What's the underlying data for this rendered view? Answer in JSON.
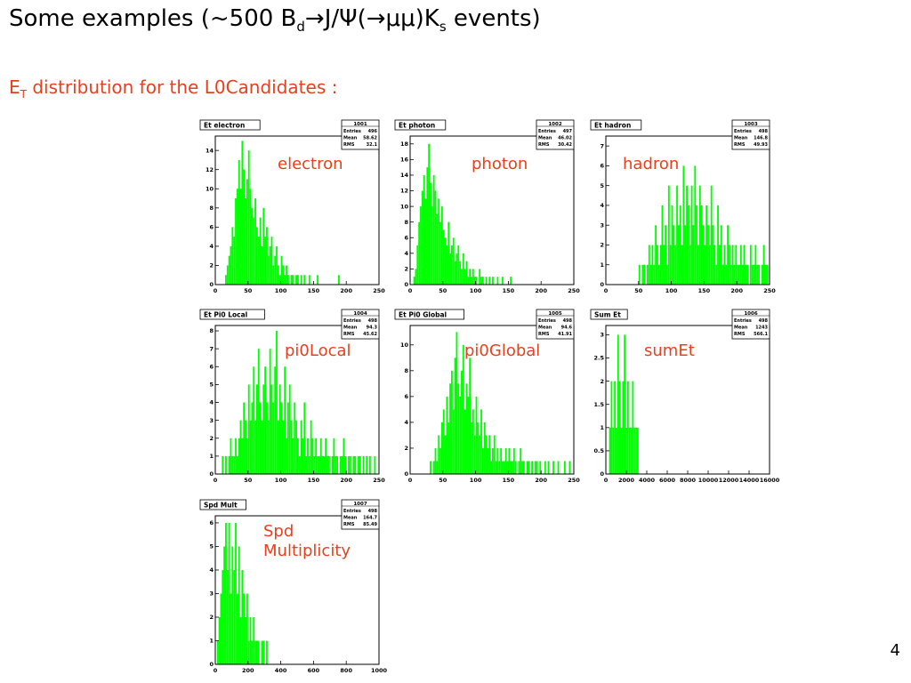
{
  "slide": {
    "title_prefix": "Some examples (~500 B",
    "title_sub_d": "d",
    "title_mid": "J/Ψ(",
    "title_mumu": "μμ",
    "title_end": ")K",
    "title_sub_s": "s",
    "title_tail": " events)",
    "arrow": "→",
    "subtitle_e": "E",
    "subtitle_sub": "T",
    "subtitle_rest": " distribution for the L0Candidates :",
    "page_number": "4"
  },
  "colors": {
    "histogram": "#00ff00",
    "label": "#e8401c",
    "frame": "#000000"
  },
  "stats_labels": {
    "entries": "Entries",
    "mean": "Mean",
    "rms": "RMS"
  },
  "chart_data": [
    {
      "type": "bar",
      "title": "Et electron",
      "label_line1": "electron",
      "label_line2": "",
      "id": "1001",
      "entries": "496",
      "mean": "58.62",
      "rms": "32.1",
      "xlim": [
        0,
        250
      ],
      "ylim": [
        0,
        15.5
      ],
      "xticks": [
        0,
        50,
        100,
        150,
        200,
        250
      ],
      "xtick_labels": [
        "0",
        "50",
        "100",
        "150",
        "200",
        "250"
      ],
      "yticks": [
        0,
        2,
        4,
        6,
        8,
        10,
        12,
        14
      ],
      "ytick_labels": [
        "0",
        "2",
        "4",
        "6",
        "8",
        "10",
        "12",
        "14"
      ],
      "bin_start": 0,
      "bin_width": 2.5,
      "values": [
        0,
        0,
        0,
        0,
        0,
        0,
        1,
        2,
        3,
        4,
        6,
        5,
        9,
        10,
        13,
        10,
        15,
        12,
        9,
        11,
        14,
        10,
        8,
        7,
        9,
        6,
        5,
        7,
        4,
        8,
        5,
        6,
        3,
        4,
        5,
        2,
        3,
        4,
        2,
        1,
        3,
        2,
        1,
        2,
        1,
        0,
        1,
        1,
        0,
        1,
        1,
        0,
        1,
        0,
        1,
        0,
        0,
        1,
        0,
        0,
        0,
        0,
        1,
        0,
        0,
        0,
        0,
        0,
        0,
        0,
        0,
        0,
        0,
        0,
        0,
        1,
        0,
        0,
        0,
        0,
        0,
        0,
        0,
        0,
        0,
        0,
        0,
        0,
        0,
        0,
        0,
        0,
        0,
        0,
        0,
        0,
        0,
        0,
        0,
        0
      ]
    },
    {
      "type": "bar",
      "title": "Et photon",
      "label_line1": "photon",
      "label_line2": "",
      "id": "1002",
      "entries": "497",
      "mean": "46.02",
      "rms": "30.42",
      "xlim": [
        0,
        250
      ],
      "ylim": [
        0,
        19
      ],
      "xticks": [
        0,
        50,
        100,
        150,
        200,
        250
      ],
      "xtick_labels": [
        "0",
        "50",
        "100",
        "150",
        "200",
        "250"
      ],
      "yticks": [
        0,
        2,
        4,
        6,
        8,
        10,
        12,
        14,
        16,
        18
      ],
      "ytick_labels": [
        "0",
        "2",
        "4",
        "6",
        "8",
        "10",
        "12",
        "14",
        "16",
        "18"
      ],
      "bin_start": 0,
      "bin_width": 2.5,
      "values": [
        0,
        0,
        1,
        2,
        5,
        8,
        10,
        12,
        14,
        11,
        15,
        18,
        13,
        10,
        14,
        12,
        9,
        11,
        8,
        10,
        7,
        6,
        5,
        8,
        4,
        5,
        6,
        3,
        4,
        5,
        3,
        2,
        4,
        2,
        3,
        1,
        2,
        1,
        2,
        1,
        1,
        0,
        2,
        1,
        1,
        0,
        1,
        0,
        1,
        0,
        1,
        0,
        0,
        1,
        0,
        0,
        1,
        0,
        0,
        0,
        0,
        1,
        0,
        0,
        0,
        0,
        0,
        0,
        0,
        0,
        0,
        0,
        0,
        0,
        0,
        0,
        0,
        0,
        0,
        0,
        0,
        0,
        0,
        0,
        0,
        0,
        0,
        0,
        0,
        0,
        0,
        0,
        0,
        0,
        0,
        0,
        0,
        0,
        0,
        0
      ]
    },
    {
      "type": "bar",
      "title": "Et hadron",
      "label_line1": "hadron",
      "label_line2": "",
      "id": "1003",
      "entries": "498",
      "mean": "146.8",
      "rms": "49.93",
      "xlim": [
        0,
        250
      ],
      "ylim": [
        0,
        7.5
      ],
      "xticks": [
        0,
        50,
        100,
        150,
        200,
        250
      ],
      "xtick_labels": [
        "0",
        "50",
        "100",
        "150",
        "200",
        "250"
      ],
      "yticks": [
        0,
        1,
        2,
        3,
        4,
        5,
        6,
        7
      ],
      "ytick_labels": [
        "0",
        "1",
        "2",
        "3",
        "4",
        "5",
        "6",
        "7"
      ],
      "bin_start": 0,
      "bin_width": 2.5,
      "values": [
        0,
        0,
        0,
        0,
        0,
        0,
        0,
        0,
        0,
        0,
        0,
        0,
        0,
        0,
        0,
        0,
        0,
        0,
        0,
        0,
        1,
        0,
        1,
        1,
        0,
        1,
        2,
        1,
        2,
        1,
        3,
        2,
        1,
        2,
        4,
        2,
        3,
        1,
        5,
        2,
        4,
        3,
        2,
        5,
        3,
        4,
        2,
        6,
        3,
        5,
        4,
        2,
        5,
        3,
        6,
        4,
        2,
        5,
        4,
        3,
        2,
        4,
        3,
        2,
        5,
        3,
        2,
        1,
        4,
        2,
        3,
        1,
        2,
        1,
        3,
        2,
        1,
        2,
        1,
        2,
        1,
        1,
        2,
        1,
        2,
        1,
        1,
        0,
        2,
        1,
        1,
        2,
        1,
        1,
        0,
        1,
        2,
        1,
        1,
        0
      ]
    },
    {
      "type": "bar",
      "title": "Et Pi0 Local",
      "label_line1": "pi0Local",
      "label_line2": "",
      "id": "1004",
      "entries": "498",
      "mean": "94.3",
      "rms": "45.62",
      "xlim": [
        0,
        250
      ],
      "ylim": [
        0,
        8.3
      ],
      "xticks": [
        0,
        50,
        100,
        150,
        200,
        250
      ],
      "xtick_labels": [
        "0",
        "50",
        "100",
        "150",
        "200",
        "250"
      ],
      "yticks": [
        0,
        1,
        2,
        3,
        4,
        5,
        6,
        7,
        8
      ],
      "ytick_labels": [
        "0",
        "1",
        "2",
        "3",
        "4",
        "5",
        "6",
        "7",
        "8"
      ],
      "bin_start": 0,
      "bin_width": 2.5,
      "values": [
        0,
        0,
        0,
        0,
        1,
        0,
        1,
        0,
        1,
        2,
        1,
        1,
        2,
        1,
        2,
        3,
        2,
        4,
        3,
        2,
        5,
        3,
        4,
        6,
        3,
        5,
        7,
        4,
        3,
        5,
        6,
        4,
        3,
        7,
        5,
        4,
        6,
        8,
        3,
        5,
        4,
        3,
        6,
        2,
        4,
        5,
        3,
        2,
        4,
        3,
        2,
        1,
        3,
        2,
        4,
        1,
        2,
        1,
        3,
        2,
        1,
        2,
        1,
        1,
        2,
        1,
        1,
        2,
        1,
        1,
        0,
        1,
        2,
        1,
        1,
        0,
        1,
        1,
        2,
        1,
        0,
        1,
        1,
        0,
        1,
        1,
        0,
        1,
        1,
        0,
        1,
        0,
        1,
        0,
        1,
        0,
        0,
        1,
        0,
        0
      ]
    },
    {
      "type": "bar",
      "title": "Et Pi0 Global",
      "label_line1": "pi0Global",
      "label_line2": "",
      "id": "1005",
      "entries": "498",
      "mean": "94.6",
      "rms": "41.91",
      "xlim": [
        0,
        250
      ],
      "ylim": [
        0,
        11.5
      ],
      "xticks": [
        0,
        50,
        100,
        150,
        200,
        250
      ],
      "xtick_labels": [
        "0",
        "50",
        "100",
        "150",
        "200",
        "250"
      ],
      "yticks": [
        0,
        2,
        4,
        6,
        8,
        10
      ],
      "ytick_labels": [
        "0",
        "2",
        "4",
        "6",
        "8",
        "10"
      ],
      "bin_start": 0,
      "bin_width": 2.5,
      "values": [
        0,
        0,
        0,
        0,
        0,
        0,
        0,
        0,
        0,
        0,
        0,
        0,
        1,
        0,
        1,
        2,
        1,
        3,
        2,
        4,
        5,
        3,
        6,
        4,
        7,
        8,
        5,
        9,
        11,
        7,
        6,
        8,
        10,
        5,
        7,
        6,
        9,
        4,
        5,
        3,
        6,
        4,
        3,
        5,
        2,
        4,
        3,
        2,
        3,
        1,
        2,
        3,
        1,
        2,
        1,
        2,
        1,
        1,
        2,
        1,
        2,
        1,
        1,
        2,
        1,
        0,
        1,
        2,
        1,
        1,
        0,
        1,
        1,
        0,
        1,
        0,
        1,
        1,
        0,
        1,
        0,
        0,
        1,
        0,
        1,
        0,
        0,
        1,
        0,
        0,
        1,
        0,
        0,
        0,
        1,
        0,
        0,
        1,
        0,
        0
      ]
    },
    {
      "type": "bar",
      "title": "Sum Et",
      "label_line1": "sumEt",
      "label_line2": "",
      "id": "1006",
      "entries": "498",
      "mean": "1243",
      "rms": "566.1",
      "xlim": [
        0,
        16000
      ],
      "ylim": [
        0,
        3.2
      ],
      "xticks": [
        0,
        2000,
        4000,
        6000,
        8000,
        10000,
        12000,
        14000,
        16000
      ],
      "xtick_labels": [
        "0",
        "2000",
        "4000",
        "6000",
        "8000",
        "10000",
        "12000",
        "14000",
        "16000"
      ],
      "yticks": [
        0,
        0.5,
        1,
        1.5,
        2,
        2.5,
        3
      ],
      "ytick_labels": [
        "0",
        "0.5",
        "1",
        "1.5",
        "2",
        "2.5",
        "3"
      ],
      "bin_start": 0,
      "bin_width": 160,
      "values": [
        0,
        0,
        1,
        2,
        1,
        2,
        1,
        3,
        2,
        1,
        2,
        3,
        1,
        2,
        1,
        1,
        2,
        1,
        1,
        1,
        0,
        0,
        0,
        0,
        0,
        0,
        0,
        0,
        0,
        0,
        0,
        0,
        0,
        0,
        0,
        0,
        0,
        0,
        0,
        0,
        0,
        0,
        0,
        0,
        0,
        0,
        0,
        0,
        0,
        0,
        0,
        0,
        0,
        0,
        0,
        0,
        0,
        0,
        0,
        0,
        0,
        0,
        0,
        0,
        0,
        0,
        0,
        0,
        0,
        0,
        0,
        0,
        0,
        0,
        0,
        0,
        0,
        0,
        0,
        0,
        0,
        0,
        0,
        0,
        0,
        0,
        0,
        0,
        0,
        0,
        0,
        0,
        0,
        0,
        0,
        0,
        0,
        0,
        0,
        0
      ]
    },
    {
      "type": "bar",
      "title": "Spd Mult",
      "label_line1": "Spd",
      "label_line2": "Multiplicity",
      "id": "1007",
      "entries": "498",
      "mean": "164.7",
      "rms": "85.49",
      "xlim": [
        0,
        1000
      ],
      "ylim": [
        0,
        6.3
      ],
      "xticks": [
        0,
        200,
        400,
        600,
        800,
        1000
      ],
      "xtick_labels": [
        "0",
        "200",
        "400",
        "600",
        "800",
        "1000"
      ],
      "yticks": [
        0,
        1,
        2,
        3,
        4,
        5,
        6
      ],
      "ytick_labels": [
        "0",
        "1",
        "2",
        "3",
        "4",
        "5",
        "6"
      ],
      "bin_start": 0,
      "bin_width": 10,
      "values": [
        0,
        1,
        2,
        3,
        4,
        5,
        6,
        4,
        6,
        3,
        5,
        4,
        6,
        3,
        5,
        2,
        4,
        3,
        2,
        3,
        1,
        2,
        1,
        2,
        1,
        1,
        1,
        0,
        1,
        1,
        0,
        1,
        0,
        0,
        0,
        0,
        0,
        0,
        0,
        0,
        0,
        0,
        0,
        0,
        0,
        0,
        0,
        0,
        0,
        0,
        0,
        0,
        0,
        0,
        0,
        0,
        0,
        0,
        0,
        0,
        0,
        0,
        0,
        0,
        0,
        0,
        0,
        0,
        0,
        0,
        0,
        0,
        0,
        0,
        0,
        0,
        0,
        0,
        0,
        0,
        0,
        0,
        0,
        0,
        0,
        0,
        0,
        0,
        0,
        0,
        0,
        0,
        0,
        0,
        0,
        0,
        0,
        0,
        0,
        0
      ]
    }
  ]
}
